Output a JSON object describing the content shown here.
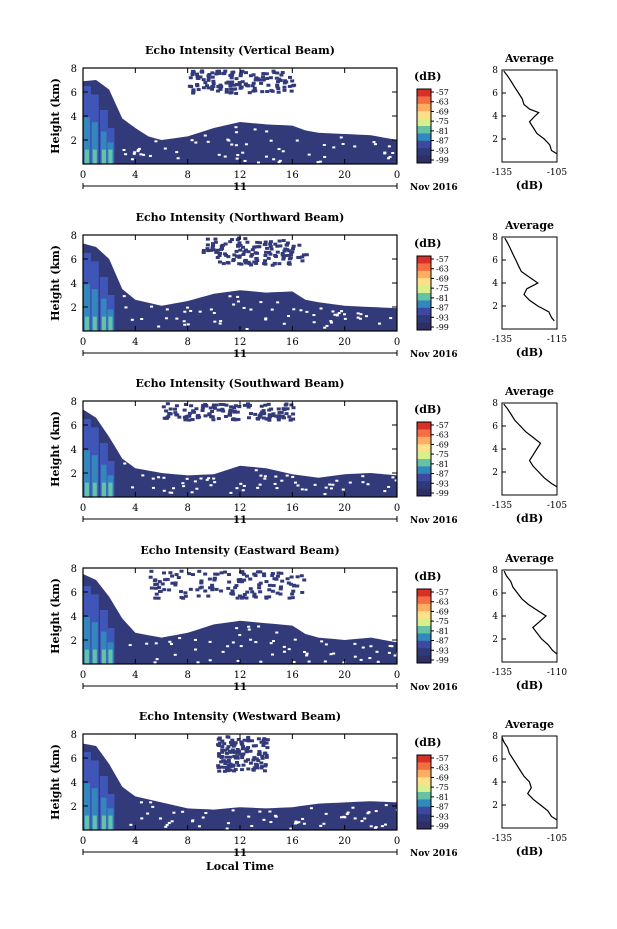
{
  "shared": {
    "xlabel": "Local Time",
    "ylabel": "Height (km)",
    "date_label": "Nov 2016",
    "day_label": "11",
    "xticks": [
      "0",
      "4",
      "8",
      "12",
      "16",
      "20",
      "0"
    ],
    "yticks": [
      "2",
      "4",
      "6",
      "8"
    ],
    "colorbar_unit": "(dB)",
    "colorbar_ticks": [
      "-57",
      "-63",
      "-69",
      "-75",
      "-81",
      "-87",
      "-93",
      "-99"
    ],
    "colorbar_colors": [
      "#d73027",
      "#f46d43",
      "#fdae61",
      "#fee08b",
      "#d9ef8b",
      "#66c2a5",
      "#3288bd",
      "#3f48a0",
      "#2e3a78",
      "#2f2f66"
    ],
    "mask_color": "#333a7a",
    "avg_title": "Average",
    "avg_xlabel": "(dB)",
    "avg_yticks": [
      "2",
      "4",
      "6",
      "8"
    ]
  },
  "chart_data": [
    {
      "type": "heatmap",
      "title": "Echo Intensity (Vertical Beam)",
      "xlabel": "",
      "ylabel": "Height (km)",
      "xlim": [
        0,
        24
      ],
      "ylim": [
        0,
        8
      ],
      "layer_top": [
        [
          0,
          6.9
        ],
        [
          1,
          7.0
        ],
        [
          2,
          6.2
        ],
        [
          3,
          3.8
        ],
        [
          4,
          3.0
        ],
        [
          5,
          2.3
        ],
        [
          6,
          2.0
        ],
        [
          8,
          2.3
        ],
        [
          10,
          3.0
        ],
        [
          12,
          3.5
        ],
        [
          14,
          3.3
        ],
        [
          16,
          3.2
        ],
        [
          17,
          2.8
        ],
        [
          18,
          2.6
        ],
        [
          20,
          2.5
        ],
        [
          22,
          2.4
        ],
        [
          24,
          2.0
        ]
      ],
      "upper_band": [
        8,
        16,
        6.0,
        7.9
      ],
      "avg_ticks": [
        "-135",
        "-105"
      ],
      "avg_xlim": [
        -135,
        -105
      ],
      "avg_profile": [
        [
          0.7,
          -105
        ],
        [
          1,
          -108
        ],
        [
          1.5,
          -109
        ],
        [
          2,
          -112
        ],
        [
          2.5,
          -116
        ],
        [
          3,
          -118
        ],
        [
          3.5,
          -120
        ],
        [
          4,
          -117
        ],
        [
          4.3,
          -115
        ],
        [
          4.6,
          -120
        ],
        [
          5,
          -123
        ],
        [
          5.5,
          -124
        ],
        [
          6,
          -126
        ],
        [
          6.5,
          -128
        ],
        [
          7,
          -130
        ],
        [
          7.5,
          -132
        ],
        [
          7.9,
          -134
        ]
      ]
    },
    {
      "type": "heatmap",
      "title": "Echo Intensity (Northward Beam)",
      "xlabel": "",
      "ylabel": "Height (km)",
      "xlim": [
        0,
        24
      ],
      "ylim": [
        0,
        8
      ],
      "layer_top": [
        [
          0,
          7.3
        ],
        [
          1,
          7.0
        ],
        [
          2,
          6.0
        ],
        [
          3,
          3.5
        ],
        [
          4,
          2.6
        ],
        [
          6,
          2.1
        ],
        [
          8,
          2.5
        ],
        [
          10,
          3.1
        ],
        [
          12,
          3.4
        ],
        [
          14,
          3.2
        ],
        [
          16,
          3.3
        ],
        [
          17,
          2.6
        ],
        [
          18,
          2.4
        ],
        [
          20,
          2.1
        ],
        [
          22,
          2.0
        ],
        [
          24,
          1.9
        ]
      ],
      "upper_band": [
        9,
        17,
        5.6,
        7.9
      ],
      "avg_ticks": [
        "-135",
        "-115"
      ],
      "avg_xlim": [
        -135,
        -115
      ],
      "avg_profile": [
        [
          0.7,
          -116
        ],
        [
          1,
          -117
        ],
        [
          1.5,
          -118
        ],
        [
          2,
          -122
        ],
        [
          2.5,
          -125
        ],
        [
          3,
          -127
        ],
        [
          3.5,
          -126
        ],
        [
          4,
          -122
        ],
        [
          4.5,
          -125
        ],
        [
          5,
          -128
        ],
        [
          5.5,
          -129
        ],
        [
          6,
          -130
        ],
        [
          6.5,
          -131
        ],
        [
          7,
          -132
        ],
        [
          7.5,
          -133
        ],
        [
          7.9,
          -134
        ]
      ]
    },
    {
      "type": "heatmap",
      "title": "Echo Intensity (Southward Beam)",
      "xlabel": "",
      "ylabel": "Height (km)",
      "xlim": [
        0,
        24
      ],
      "ylim": [
        0,
        8
      ],
      "layer_top": [
        [
          0,
          7.3
        ],
        [
          1,
          6.6
        ],
        [
          2,
          5.0
        ],
        [
          3,
          3.2
        ],
        [
          4,
          2.4
        ],
        [
          6,
          2.0
        ],
        [
          8,
          1.8
        ],
        [
          10,
          1.9
        ],
        [
          12,
          2.6
        ],
        [
          14,
          2.4
        ],
        [
          16,
          1.9
        ],
        [
          18,
          1.6
        ],
        [
          20,
          1.9
        ],
        [
          22,
          2.0
        ],
        [
          24,
          1.8
        ]
      ],
      "upper_band": [
        6,
        16,
        6.5,
        7.9
      ],
      "avg_ticks": [
        "-135",
        "-105"
      ],
      "avg_xlim": [
        -135,
        -105
      ],
      "avg_profile": [
        [
          0.7,
          -105
        ],
        [
          1,
          -108
        ],
        [
          1.5,
          -112
        ],
        [
          2,
          -115
        ],
        [
          2.5,
          -118
        ],
        [
          3,
          -120
        ],
        [
          3.5,
          -118
        ],
        [
          4,
          -116
        ],
        [
          4.5,
          -114
        ],
        [
          5,
          -118
        ],
        [
          5.5,
          -122
        ],
        [
          6,
          -125
        ],
        [
          6.5,
          -128
        ],
        [
          7,
          -130
        ],
        [
          7.5,
          -132
        ],
        [
          7.9,
          -134
        ]
      ]
    },
    {
      "type": "heatmap",
      "title": "Echo Intensity (Eastward Beam)",
      "xlabel": "",
      "ylabel": "Height (km)",
      "xlim": [
        0,
        24
      ],
      "ylim": [
        0,
        8
      ],
      "layer_top": [
        [
          0,
          7.5
        ],
        [
          1,
          7.0
        ],
        [
          2,
          5.6
        ],
        [
          3,
          3.8
        ],
        [
          4,
          2.6
        ],
        [
          6,
          2.2
        ],
        [
          8,
          2.6
        ],
        [
          10,
          3.3
        ],
        [
          12,
          3.6
        ],
        [
          14,
          3.4
        ],
        [
          16,
          3.2
        ],
        [
          17,
          2.5
        ],
        [
          18,
          2.2
        ],
        [
          20,
          2.0
        ],
        [
          22,
          2.2
        ],
        [
          24,
          1.8
        ]
      ],
      "upper_band": [
        5,
        17,
        5.6,
        7.9
      ],
      "avg_ticks": [
        "-135",
        "-110"
      ],
      "avg_xlim": [
        -135,
        -110
      ],
      "avg_profile": [
        [
          0.7,
          -110
        ],
        [
          1,
          -112
        ],
        [
          1.5,
          -114
        ],
        [
          2,
          -117
        ],
        [
          2.5,
          -119
        ],
        [
          3,
          -121
        ],
        [
          3.5,
          -118
        ],
        [
          4,
          -115
        ],
        [
          4.5,
          -119
        ],
        [
          5,
          -123
        ],
        [
          5.5,
          -126
        ],
        [
          6,
          -128
        ],
        [
          6.5,
          -130
        ],
        [
          7,
          -131
        ],
        [
          7.5,
          -133
        ],
        [
          7.9,
          -134
        ]
      ]
    },
    {
      "type": "heatmap",
      "title": "Echo Intensity (Westward Beam)",
      "xlabel": "Local Time",
      "ylabel": "Height (km)",
      "xlim": [
        0,
        24
      ],
      "ylim": [
        0,
        8
      ],
      "layer_top": [
        [
          0,
          7.2
        ],
        [
          1,
          7.0
        ],
        [
          2,
          5.5
        ],
        [
          3,
          3.6
        ],
        [
          4,
          2.8
        ],
        [
          6,
          2.3
        ],
        [
          8,
          1.8
        ],
        [
          10,
          1.7
        ],
        [
          12,
          1.9
        ],
        [
          14,
          1.8
        ],
        [
          16,
          1.9
        ],
        [
          18,
          2.2
        ],
        [
          20,
          2.3
        ],
        [
          22,
          2.4
        ],
        [
          24,
          2.3
        ]
      ],
      "upper_band": [
        10,
        14,
        5.0,
        7.9
      ],
      "avg_ticks": [
        "-135",
        "-105"
      ],
      "avg_xlim": [
        -135,
        -105
      ],
      "avg_profile": [
        [
          0.7,
          -105
        ],
        [
          1,
          -108
        ],
        [
          1.5,
          -110
        ],
        [
          2,
          -114
        ],
        [
          2.5,
          -118
        ],
        [
          3,
          -121
        ],
        [
          3.5,
          -119
        ],
        [
          4,
          -120
        ],
        [
          4.5,
          -123
        ],
        [
          5,
          -125
        ],
        [
          5.5,
          -127
        ],
        [
          6,
          -129
        ],
        [
          6.5,
          -131
        ],
        [
          7,
          -132
        ],
        [
          7.5,
          -134
        ],
        [
          7.9,
          -135
        ]
      ]
    }
  ]
}
